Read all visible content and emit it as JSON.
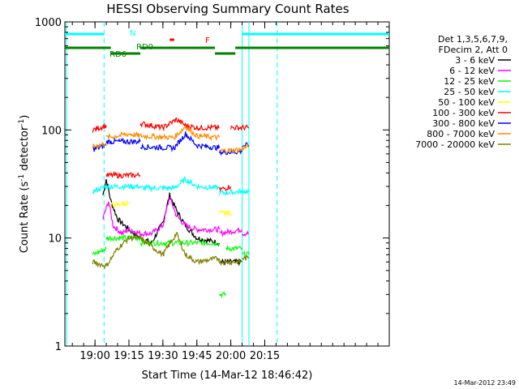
{
  "chart_data": {
    "type": "line",
    "title": "HESSI Observing Summary Count Rates",
    "xlabel": "Start Time (14-Mar-12 18:46:42)",
    "ylabel": "Count Rate (s⁻¹ detector⁻¹)",
    "ylabel_main": "Count Rate (s",
    "ylabel_mid": " detector",
    "ylabel_end": ")",
    "ylabel_sup": "-1",
    "yscale": "log",
    "xlim": [
      "18:46:42",
      "21:10:00"
    ],
    "ylim": [
      1,
      1000
    ],
    "xticks": [
      "19:00",
      "19:15",
      "19:30",
      "19:45",
      "20:00",
      "20:15"
    ],
    "yticks": [
      "1",
      "10",
      "100",
      "1000"
    ],
    "legend_placement": "right",
    "legend_header": [
      "Det 1,3,5,6,7,9,",
      "FDecim 2, Att 0"
    ],
    "footer_timestamp": "14-Mar-2012 23:49",
    "flags": {
      "N": "N",
      "F": "F",
      "RD0": "RD0",
      "RD6": "RD6"
    },
    "series": [
      {
        "name": "3 - 6 keV",
        "color": "#000000",
        "segments": [
          {
            "x": [
              "19:03:30",
              "19:05",
              "19:07",
              "19:10",
              "19:15",
              "19:20",
              "19:25",
              "19:30",
              "19:33",
              "19:36",
              "19:40",
              "19:45",
              "19:50",
              "19:55"
            ],
            "y": [
              25,
              35,
              22,
              15,
              12,
              10,
              9,
              14,
              25,
              18,
              13,
              10,
              9.5,
              9
            ]
          },
          {
            "x": [
              "19:55",
              "20:05"
            ],
            "y": [
              6,
              6
            ]
          }
        ]
      },
      {
        "name": "6 - 12 keV",
        "color": "#ff00ff",
        "segments": [
          {
            "x": [
              "19:03:30",
              "19:06",
              "19:08",
              "19:12",
              "19:15",
              "19:20",
              "19:25",
              "19:30",
              "19:33",
              "19:36",
              "19:40",
              "19:45",
              "19:50",
              "19:55"
            ],
            "y": [
              15,
              22,
              13,
              11,
              12,
              11,
              11,
              13,
              24,
              16,
              13,
              12,
              12,
              12
            ]
          },
          {
            "x": [
              "19:55",
              "20:05"
            ],
            "y": [
              11,
              12
            ]
          },
          {
            "x": [
              "20:05",
              "20:08"
            ],
            "y": [
              11,
              11
            ]
          }
        ]
      },
      {
        "name": "12 - 25 keV",
        "color": "#00ff00",
        "segments": [
          {
            "x": [
              "18:59",
              "19:05"
            ],
            "y": [
              7,
              8
            ]
          },
          {
            "x": [
              "19:05",
              "19:20"
            ],
            "y": [
              10,
              10
            ]
          },
          {
            "x": [
              "19:20",
              "19:55"
            ],
            "y": [
              9,
              9
            ]
          },
          {
            "x": [
              "19:55",
              "19:58"
            ],
            "y": [
              3,
              3
            ]
          },
          {
            "x": [
              "19:58",
              "20:05"
            ],
            "y": [
              8,
              8
            ]
          },
          {
            "x": [
              "20:05",
              "20:08"
            ],
            "y": [
              7,
              7
            ]
          }
        ]
      },
      {
        "name": "25 - 50 keV",
        "color": "#00ffff",
        "segments": [
          {
            "x": [
              "18:59",
              "19:05"
            ],
            "y": [
              27,
              30
            ]
          },
          {
            "x": [
              "19:05",
              "19:20"
            ],
            "y": [
              30,
              30
            ]
          },
          {
            "x": [
              "19:20",
              "19:35",
              "19:40",
              "19:45",
              "19:55"
            ],
            "y": [
              29,
              29,
              35,
              30,
              29
            ]
          },
          {
            "x": [
              "19:55",
              "20:05"
            ],
            "y": [
              26,
              27
            ]
          },
          {
            "x": [
              "20:05",
              "20:08"
            ],
            "y": [
              27,
              27
            ]
          }
        ]
      },
      {
        "name": "50 - 100 keV",
        "color": "#ffff00",
        "segments": [
          {
            "x": [
              "19:07",
              "19:15"
            ],
            "y": [
              20,
              21
            ]
          },
          {
            "x": [
              "19:55",
              "20:00"
            ],
            "y": [
              17,
              17
            ]
          }
        ]
      },
      {
        "name": "100 - 300 keV",
        "color": "#ff0000",
        "segments": [
          {
            "x": [
              "18:59",
              "19:05"
            ],
            "y": [
              100,
              110
            ]
          },
          {
            "x": [
              "19:05",
              "19:20"
            ],
            "y": [
              38,
              38
            ]
          },
          {
            "x": [
              "19:20",
              "19:30",
              "19:36",
              "19:40",
              "19:45",
              "19:55"
            ],
            "y": [
              115,
              105,
              125,
              110,
              105,
              105
            ]
          },
          {
            "x": [
              "19:55",
              "20:00"
            ],
            "y": [
              28,
              30
            ]
          },
          {
            "x": [
              "20:00",
              "20:08"
            ],
            "y": [
              105,
              105
            ]
          }
        ]
      },
      {
        "name": "300 - 800 keV",
        "color": "#0000ff",
        "segments": [
          {
            "x": [
              "18:59",
              "19:05"
            ],
            "y": [
              66,
              72
            ]
          },
          {
            "x": [
              "19:05",
              "19:20"
            ],
            "y": [
              78,
              78
            ]
          },
          {
            "x": [
              "19:20",
              "19:35",
              "19:40",
              "19:45",
              "19:55"
            ],
            "y": [
              70,
              68,
              92,
              72,
              68
            ]
          },
          {
            "x": [
              "19:55",
              "20:05"
            ],
            "y": [
              62,
              63
            ]
          },
          {
            "x": [
              "20:05",
              "20:08"
            ],
            "y": [
              72,
              72
            ]
          }
        ]
      },
      {
        "name": "800 - 7000 keV",
        "color": "#ff8c00",
        "segments": [
          {
            "x": [
              "18:59",
              "19:05"
            ],
            "y": [
              70,
              75
            ]
          },
          {
            "x": [
              "19:05",
              "19:15",
              "19:20"
            ],
            "y": [
              85,
              92,
              88
            ]
          },
          {
            "x": [
              "19:20",
              "19:35",
              "19:40",
              "19:45",
              "19:55"
            ],
            "y": [
              88,
              85,
              108,
              88,
              85
            ]
          },
          {
            "x": [
              "19:55",
              "20:05"
            ],
            "y": [
              64,
              66
            ]
          },
          {
            "x": [
              "20:05",
              "20:08"
            ],
            "y": [
              68,
              70
            ]
          }
        ]
      },
      {
        "name": "7000 - 20000 keV",
        "color": "#808000",
        "segments": [
          {
            "x": [
              "18:59",
              "19:05",
              "19:10",
              "19:15",
              "19:20",
              "19:30",
              "19:36",
              "19:40",
              "19:45",
              "19:55"
            ],
            "y": [
              6,
              5.5,
              8,
              10,
              10,
              7,
              11,
              7,
              6,
              6.5
            ]
          },
          {
            "x": [
              "19:55",
              "20:05"
            ],
            "y": [
              6,
              6
            ]
          },
          {
            "x": [
              "20:05",
              "20:08"
            ],
            "y": [
              6.5,
              6.5
            ]
          }
        ]
      }
    ],
    "annotations": {
      "cyan_vlines_solid": [
        "18:46:42",
        "20:05",
        "20:08"
      ],
      "cyan_vlines_dashed": [
        "19:04",
        "20:20:30"
      ],
      "N_bars": [
        [
          "18:46:42",
          "19:04"
        ],
        [
          "20:05",
          "21:10"
        ]
      ],
      "green_bars_upper": [
        [
          "18:46:42",
          "19:07"
        ],
        [
          "19:20",
          "19:53"
        ],
        [
          "20:02",
          "21:10"
        ]
      ],
      "green_bars_lower": [
        [
          "19:07",
          "19:20"
        ],
        [
          "19:53",
          "20:02"
        ]
      ],
      "F_bar": [
        "19:33",
        "19:35"
      ]
    }
  }
}
